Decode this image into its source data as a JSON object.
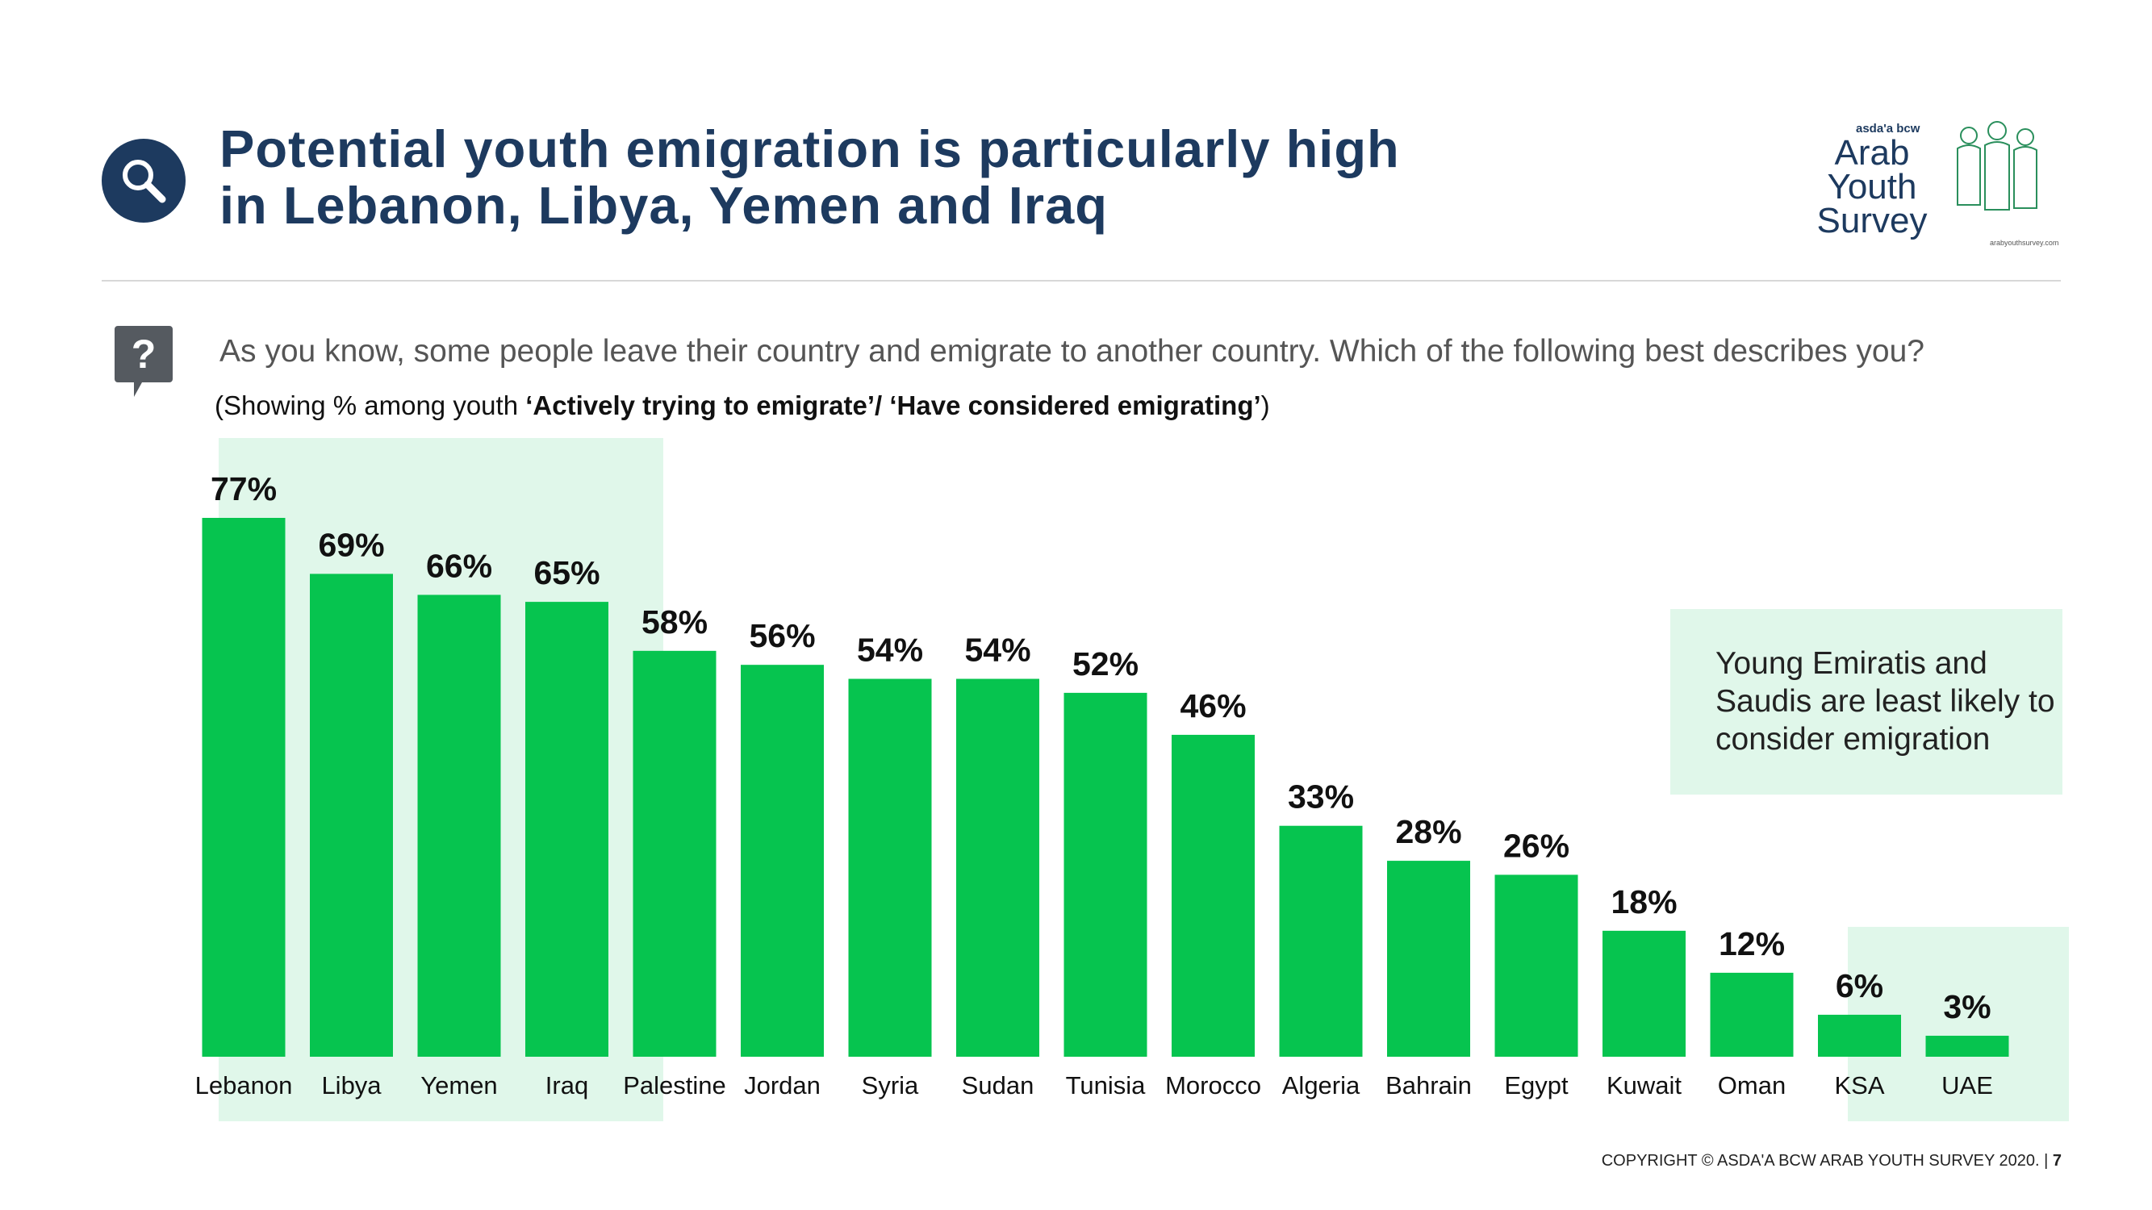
{
  "header": {
    "title_line1": "Potential youth emigration is particularly high",
    "title_line2": "in Lebanon, Libya, Yemen and Iraq",
    "search_icon": "search-icon",
    "logo": {
      "brand": "asda'a bcw",
      "line1": "Arab",
      "line2": "Youth",
      "line3": "Survey",
      "url": "arabyouthsurvey.com"
    }
  },
  "question": {
    "icon": "question-bubble-icon",
    "text": "As you know, some people leave their country and emigrate to another country. Which of the following best describes you?",
    "note_prefix": "(Showing % among youth ",
    "note_bold": "‘Actively trying to emigrate’/ ‘Have considered emigrating’",
    "note_suffix": ")"
  },
  "callout": {
    "text": "Young Emiratis and Saudis are least likely to consider emigration"
  },
  "footer": {
    "copyright": "COPYRIGHT © ASDA'A BCW ARAB YOUTH SURVEY 2020. |",
    "page": "7"
  },
  "colors": {
    "bar": "#06c44f",
    "highlight": "#e0f7ea",
    "title": "#1d3a5f"
  },
  "chart_data": {
    "type": "bar",
    "categories": [
      "Lebanon",
      "Libya",
      "Yemen",
      "Iraq",
      "Palestine",
      "Jordan",
      "Syria",
      "Sudan",
      "Tunisia",
      "Morocco",
      "Algeria",
      "Bahrain",
      "Egypt",
      "Kuwait",
      "Oman",
      "KSA",
      "UAE"
    ],
    "values": [
      77,
      69,
      66,
      65,
      58,
      56,
      54,
      54,
      52,
      46,
      33,
      28,
      26,
      18,
      12,
      6,
      3
    ],
    "labels": [
      "77%",
      "69%",
      "66%",
      "65%",
      "58%",
      "56%",
      "54%",
      "54%",
      "52%",
      "46%",
      "33%",
      "28%",
      "26%",
      "18%",
      "12%",
      "6%",
      "3%"
    ],
    "unit": "%",
    "ylim": [
      0,
      77
    ],
    "grid": false
  }
}
